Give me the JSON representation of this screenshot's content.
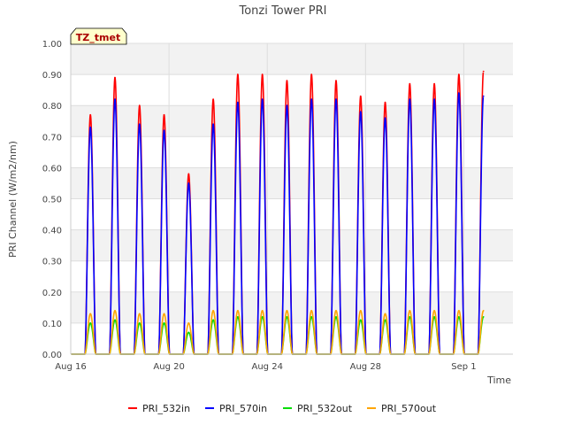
{
  "chart_data": {
    "type": "line",
    "title": "Tonzi Tower PRI",
    "xlabel": "Time",
    "ylabel": "PRI Channel (W/m2/nm)",
    "annotation": "TZ_tmet",
    "xlim": [
      16,
      34
    ],
    "ylim": [
      0.0,
      1.0
    ],
    "yticks": [
      "0.00",
      "0.10",
      "0.20",
      "0.30",
      "0.40",
      "0.50",
      "0.60",
      "0.70",
      "0.80",
      "0.90",
      "1.00"
    ],
    "xticks": [
      {
        "day": 16,
        "label": "Aug 16"
      },
      {
        "day": 20,
        "label": "Aug 20"
      },
      {
        "day": 24,
        "label": "Aug 24"
      },
      {
        "day": 28,
        "label": "Aug 28"
      },
      {
        "day": 32,
        "label": "Sep 1"
      }
    ],
    "grid": true,
    "legend_position": "bottom",
    "days": [
      16.8,
      17.8,
      18.8,
      19.8,
      20.8,
      21.8,
      22.8,
      23.8,
      24.8,
      25.8,
      26.8,
      27.8,
      28.8,
      29.8,
      30.8,
      31.8,
      32.8
    ],
    "series": [
      {
        "name": "PRI_532in",
        "color": "#ff0000",
        "peaks": [
          0.77,
          0.89,
          0.8,
          0.77,
          0.58,
          0.82,
          0.9,
          0.9,
          0.88,
          0.9,
          0.88,
          0.83,
          0.81,
          0.87,
          0.87,
          0.9,
          0.91
        ]
      },
      {
        "name": "PRI_570in",
        "color": "#0000ff",
        "peaks": [
          0.73,
          0.82,
          0.74,
          0.72,
          0.55,
          0.74,
          0.81,
          0.82,
          0.8,
          0.82,
          0.82,
          0.78,
          0.76,
          0.82,
          0.82,
          0.84,
          0.83
        ]
      },
      {
        "name": "PRI_532out",
        "color": "#00dd00",
        "peaks": [
          0.1,
          0.11,
          0.1,
          0.1,
          0.07,
          0.11,
          0.12,
          0.12,
          0.12,
          0.12,
          0.12,
          0.11,
          0.11,
          0.12,
          0.12,
          0.12,
          0.12
        ]
      },
      {
        "name": "PRI_570out",
        "color": "#ffa500",
        "peaks": [
          0.13,
          0.14,
          0.13,
          0.13,
          0.1,
          0.14,
          0.14,
          0.14,
          0.14,
          0.14,
          0.14,
          0.14,
          0.13,
          0.14,
          0.14,
          0.14,
          0.14
        ]
      }
    ]
  }
}
